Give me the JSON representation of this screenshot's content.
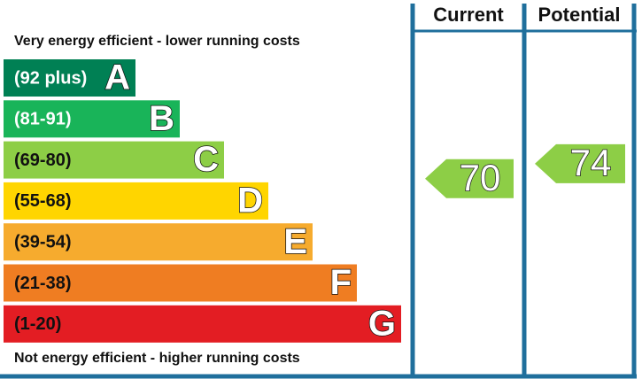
{
  "header": {
    "current": "Current",
    "potential": "Potential"
  },
  "top_note": "Very energy efficient - lower running costs",
  "bottom_note": "Not energy efficient - higher running costs",
  "bands": [
    {
      "range": "(92 plus)",
      "letter": "A",
      "color": "#008054"
    },
    {
      "range": "(81-91)",
      "letter": "B",
      "color": "#19b459"
    },
    {
      "range": "(69-80)",
      "letter": "C",
      "color": "#8dce46"
    },
    {
      "range": "(55-68)",
      "letter": "D",
      "color": "#ffd500"
    },
    {
      "range": "(39-54)",
      "letter": "E",
      "color": "#f6ab2e"
    },
    {
      "range": "(21-38)",
      "letter": "F",
      "color": "#ef7d22"
    },
    {
      "range": "(1-20)",
      "letter": "G",
      "color": "#e31d23"
    }
  ],
  "current": 70,
  "potential": 74
}
